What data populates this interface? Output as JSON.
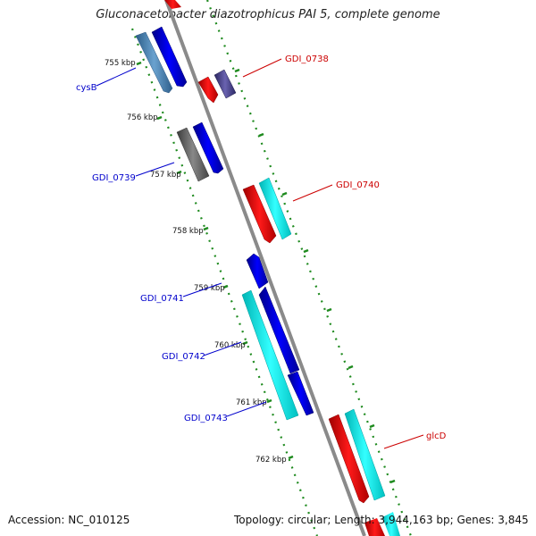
{
  "title": "Gluconacetobacter diazotrophicus PAI 5, complete genome",
  "footer": {
    "accession": "Accession: NC_010125",
    "topology": "Topology: circular; Length: 3,944,163 bp; Genes: 3,845"
  },
  "ticks": [
    "755 kbp",
    "756 kbp",
    "757 kbp",
    "758 kbp",
    "759 kbp",
    "760 kbp",
    "761 kbp",
    "762 kbp"
  ],
  "gene_labels": {
    "cysB": "cysB",
    "gdi0738": "GDI_0738",
    "gdi0739": "GDI_0739",
    "gdi0740": "GDI_0740",
    "gdi0741": "GDI_0741",
    "gdi0742": "GDI_0742",
    "gdi0743": "GDI_0743",
    "glcD": "glcD"
  },
  "colors": {
    "backbone": "#8a8a8a",
    "reverse_strand_label": "#0000cc",
    "forward_strand_label": "#cc0000",
    "tick_dots": "#1e8a1e",
    "blue": "#0000ee",
    "cyan": "#00ffff",
    "red": "#ff0000",
    "steel": "#4a86b8",
    "gray": "#666666",
    "purple": "#46408c"
  }
}
